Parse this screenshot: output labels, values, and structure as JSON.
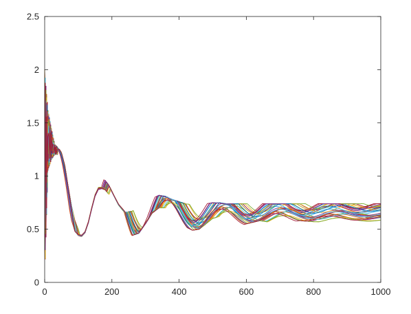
{
  "chart_data": {
    "type": "line",
    "title": "",
    "xlabel": "",
    "ylabel": "",
    "xlim": [
      0,
      1000
    ],
    "ylim": [
      0,
      2.5
    ],
    "xticks": [
      0,
      200,
      400,
      600,
      800,
      1000
    ],
    "xtick_labels": [
      "0",
      "200",
      "400",
      "600",
      "800",
      "1000"
    ],
    "yticks": [
      0,
      0.5,
      1,
      1.5,
      2,
      2.5
    ],
    "ytick_labels": [
      "0",
      "0.5",
      "1",
      "1.5",
      "2",
      "2.5"
    ],
    "grid": false,
    "legend": "none",
    "box": true,
    "colors": [
      "#0072BD",
      "#D95319",
      "#EDB120",
      "#7E2F8E",
      "#77AC30",
      "#4DBEEE",
      "#A2142F"
    ],
    "series_count": 35,
    "x": [
      0,
      10,
      20,
      30,
      40,
      50,
      60,
      70,
      80,
      90,
      100,
      110,
      120,
      130,
      140,
      150,
      160,
      170,
      180,
      190,
      200,
      220,
      240,
      260,
      280,
      300,
      320,
      340,
      360,
      380,
      400,
      420,
      440,
      460,
      480,
      500,
      520,
      540,
      560,
      580,
      600,
      640,
      680,
      720,
      760,
      800,
      850,
      900,
      950,
      1000
    ],
    "y_envelope_low": [
      0,
      1.05,
      1.15,
      1.2,
      1.2,
      1.1,
      0.95,
      0.75,
      0.58,
      0.48,
      0.44,
      0.43,
      0.46,
      0.55,
      0.68,
      0.8,
      0.87,
      0.88,
      0.87,
      0.83,
      0.77,
      0.6,
      0.48,
      0.44,
      0.46,
      0.55,
      0.65,
      0.7,
      0.7,
      0.66,
      0.6,
      0.52,
      0.49,
      0.5,
      0.55,
      0.6,
      0.62,
      0.6,
      0.55,
      0.53,
      0.55,
      0.58,
      0.56,
      0.57,
      0.58,
      0.57,
      0.57,
      0.57,
      0.57,
      0.58
    ],
    "y_envelope_high": [
      2.0,
      1.62,
      1.45,
      1.3,
      1.27,
      1.22,
      1.1,
      0.9,
      0.72,
      0.58,
      0.5,
      0.5,
      0.55,
      0.66,
      0.78,
      0.88,
      0.94,
      0.97,
      0.96,
      0.92,
      0.86,
      0.74,
      0.66,
      0.67,
      0.72,
      0.76,
      0.79,
      0.82,
      0.81,
      0.78,
      0.76,
      0.74,
      0.73,
      0.73,
      0.74,
      0.75,
      0.75,
      0.74,
      0.74,
      0.74,
      0.74,
      0.74,
      0.74,
      0.74,
      0.74,
      0.74,
      0.74,
      0.74,
      0.74,
      0.74
    ]
  }
}
